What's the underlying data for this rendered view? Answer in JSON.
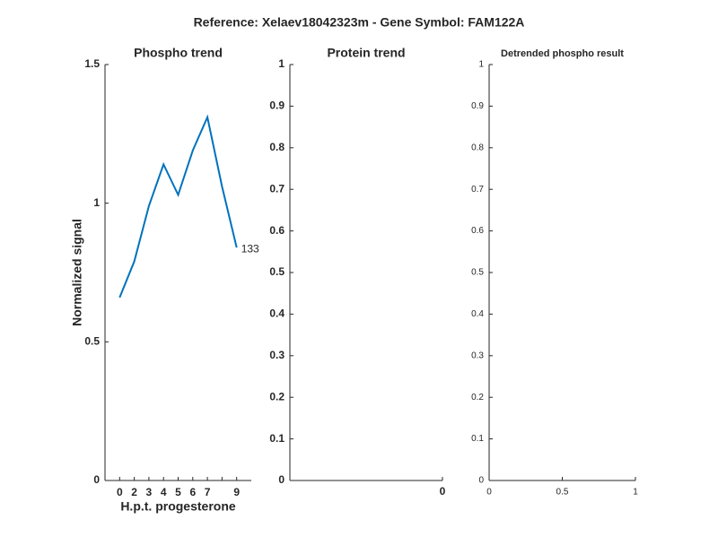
{
  "title": "Reference:  Xelaev18042323m - Gene Symbol:  FAM122A",
  "chart_data": [
    {
      "type": "line",
      "title": "Phospho trend",
      "xlabel": "H.p.t. progesterone",
      "ylabel": "Normalized signal",
      "categories": [
        "0",
        "2",
        "3",
        "4",
        "5",
        "6",
        "7",
        null,
        "9"
      ],
      "values": [
        0.66,
        0.79,
        0.99,
        1.14,
        1.03,
        1.19,
        1.31,
        1.06,
        0.84
      ],
      "color": "#0072bd",
      "annotation": "133",
      "ylim": [
        0,
        1.5
      ],
      "yticks": [
        0,
        0.5,
        1,
        1.5
      ]
    },
    {
      "type": "line",
      "title": "Protein trend",
      "xlim": [
        -1,
        0
      ],
      "xticks": [
        0
      ],
      "ylim": [
        0,
        1
      ],
      "yticks": [
        0,
        0.1,
        0.2,
        0.3,
        0.4,
        0.5,
        0.6,
        0.7,
        0.8,
        0.9,
        1
      ]
    },
    {
      "type": "line",
      "title": "Detrended phospho result",
      "xlim": [
        0,
        1
      ],
      "xticks": [
        0,
        0.5,
        1
      ],
      "ylim": [
        0,
        1
      ],
      "yticks": [
        0,
        0.1,
        0.2,
        0.3,
        0.4,
        0.5,
        0.6,
        0.7,
        0.8,
        0.9,
        1
      ]
    }
  ]
}
